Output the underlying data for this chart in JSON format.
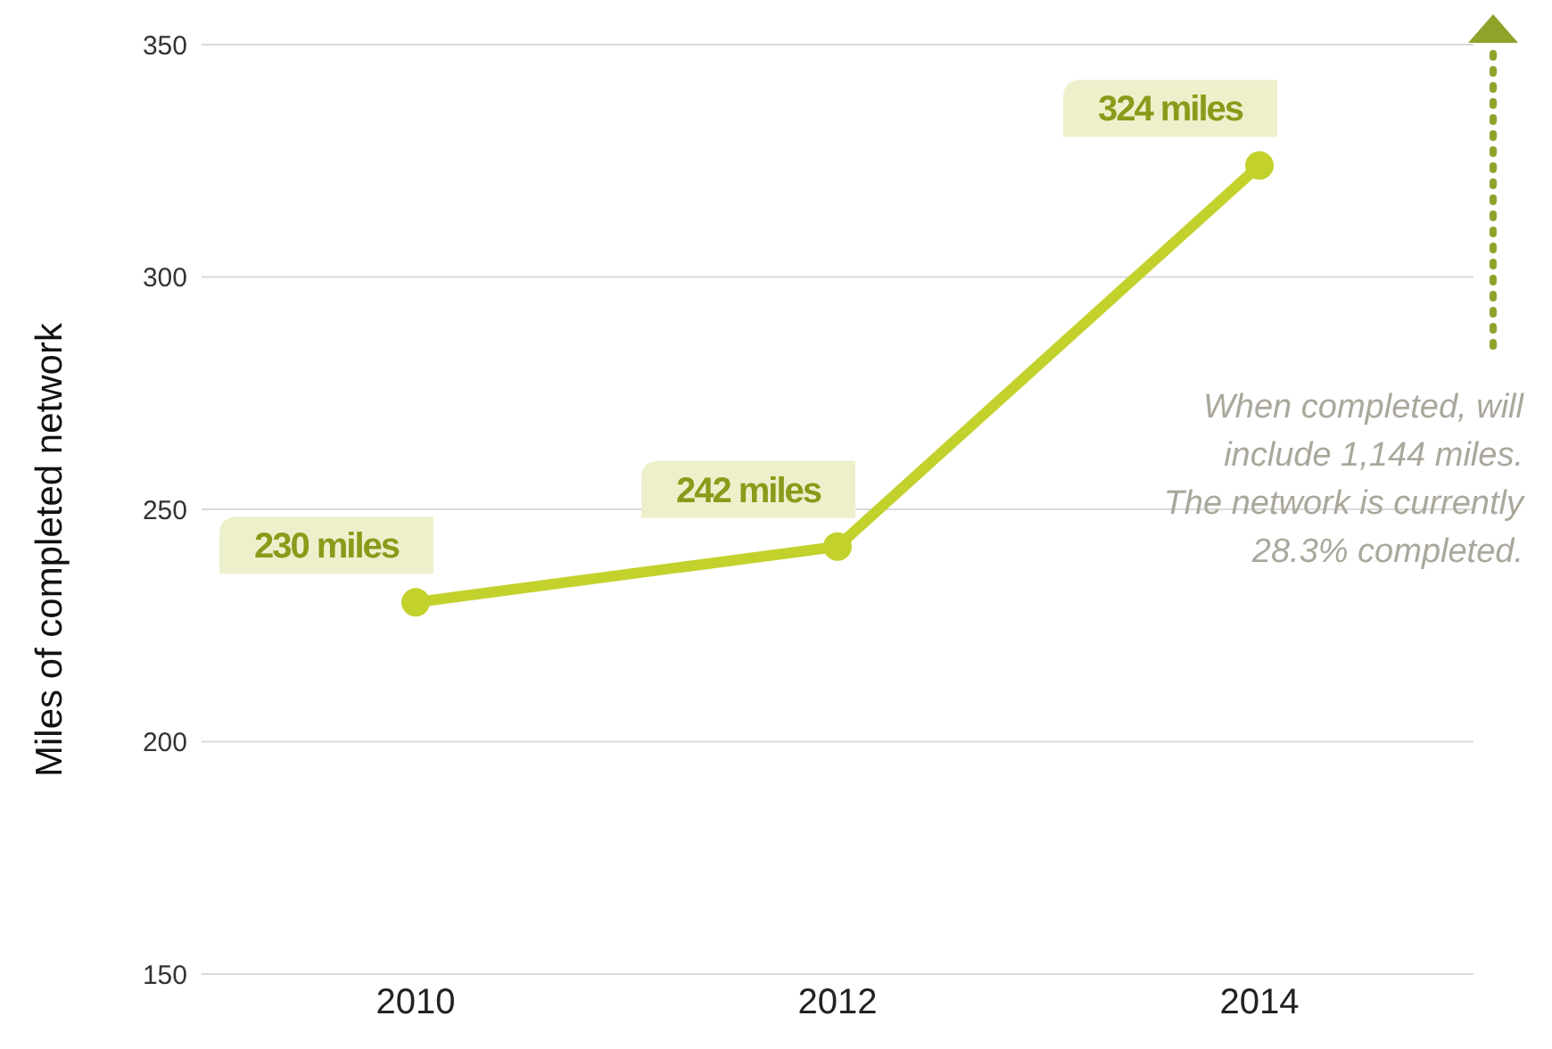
{
  "chart_data": {
    "type": "line",
    "ylabel": "Miles of completed network",
    "categories": [
      "2010",
      "2012",
      "2014"
    ],
    "series": [
      {
        "color": "#c3d12c",
        "values": [
          230,
          242,
          324
        ],
        "value_labels": [
          "230 miles",
          "242 miles",
          "324 miles"
        ]
      }
    ],
    "ylim": [
      150,
      350
    ],
    "yticks": [
      150,
      200,
      250,
      300,
      350
    ],
    "grid": "y",
    "legend": false,
    "marker": "circle",
    "line_style": "solid",
    "annotations": [
      "When completed, will include 1,144 miles. The network is currently 28.3% completed."
    ]
  }
}
